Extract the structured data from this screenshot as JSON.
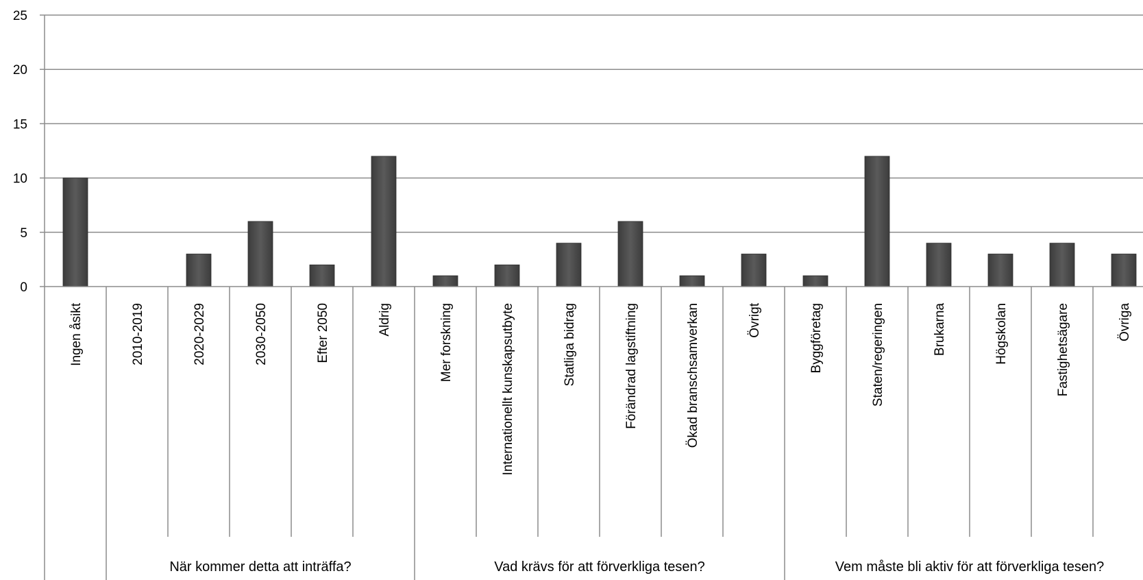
{
  "chart_data": {
    "type": "bar",
    "title": "",
    "xlabel": "",
    "ylabel": "",
    "ylim": [
      0,
      25
    ],
    "yticks": [
      0,
      5,
      10,
      15,
      20,
      25
    ],
    "grid": true,
    "bar_color": "#4a4a4a",
    "categories": [
      "Ingen åsikt",
      "2010-2019",
      "2020-2029",
      "2030-2050",
      "Efter 2050",
      "Aldrig",
      "Mer forskning",
      "Internationellt kunskapsutbyte",
      "Statliga bidrag",
      "Förändrad lagstiftning",
      "Ökad branschsamverkan",
      "Övrigt",
      "Byggföretag",
      "Staten/regeringen",
      "Brukarna",
      "Högskolan",
      "Fastighetsägare",
      "Övriga"
    ],
    "values": [
      10,
      0,
      3,
      6,
      2,
      12,
      1,
      2,
      4,
      6,
      1,
      3,
      1,
      12,
      4,
      3,
      4,
      3
    ],
    "groups": [
      {
        "label": "",
        "start": 0,
        "count": 1
      },
      {
        "label": "När kommer detta att inträffa?",
        "start": 1,
        "count": 5
      },
      {
        "label": "Vad krävs för att förverkliga tesen?",
        "start": 6,
        "count": 6
      },
      {
        "label": "Vem måste bli aktiv för att förverkliga tesen?",
        "start": 12,
        "count": 6
      }
    ]
  }
}
